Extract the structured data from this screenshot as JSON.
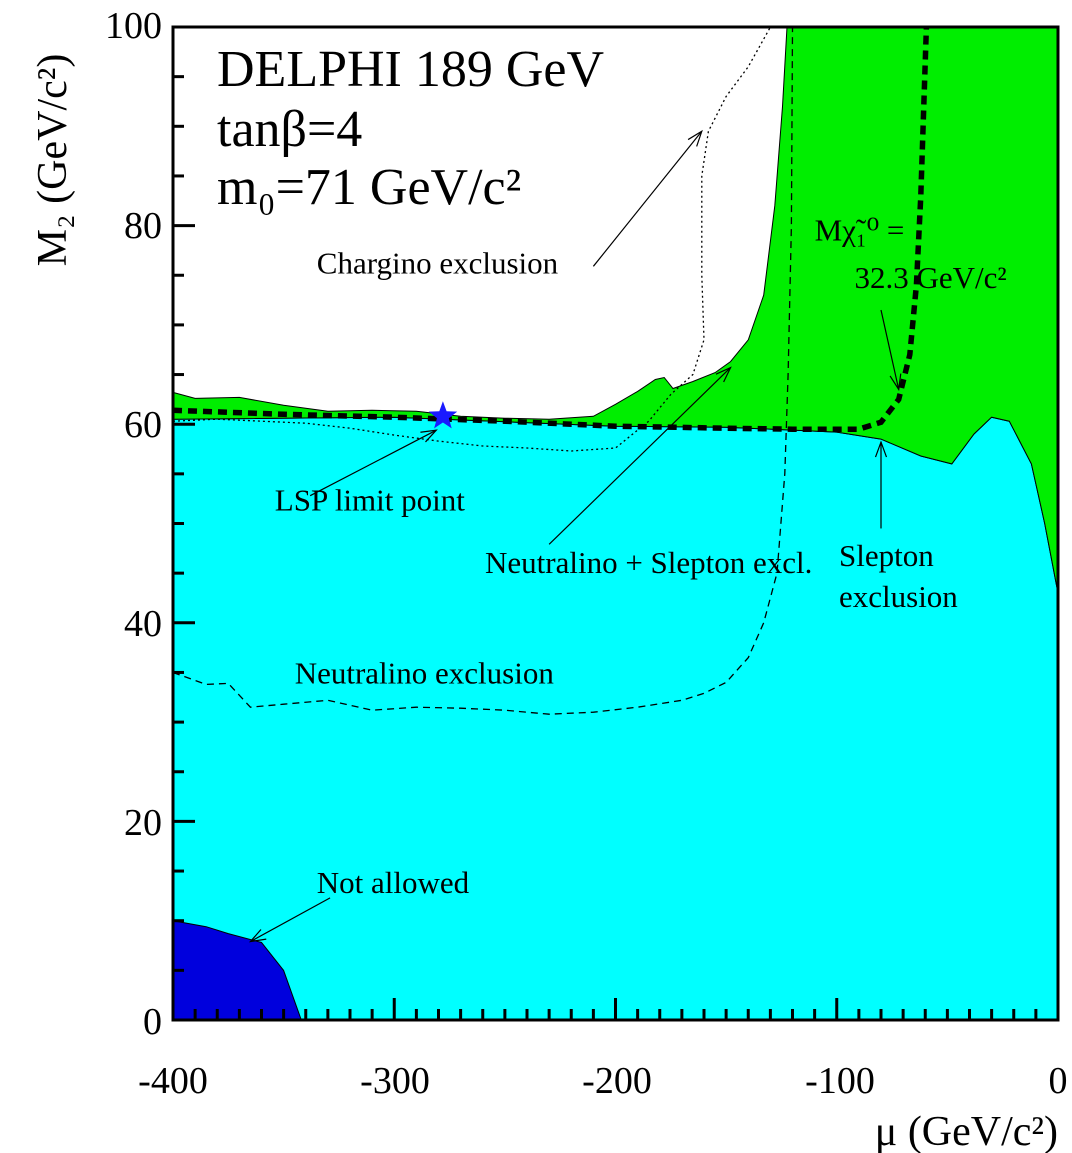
{
  "chart_data": {
    "type": "area",
    "x_axis": {
      "label": "μ (GeV/c²)",
      "range": [
        -400,
        0
      ],
      "ticks": [
        "-400",
        "-300",
        "-200",
        "-100",
        "0"
      ]
    },
    "y_axis": {
      "label": "M₂ (GeV/c²)",
      "range": [
        0,
        100
      ],
      "ticks": [
        "0",
        "20",
        "40",
        "60",
        "80",
        "100"
      ]
    },
    "info": {
      "line1": "DELPHI 189 GeV",
      "line2": "tanβ=4",
      "line3": "m₀=71 GeV/c²"
    },
    "colors": {
      "slepton_region": "#00ffff",
      "neutralino_slepton_region": "#00ee00",
      "not_allowed_region": "#0000dd",
      "lsp_star": "#1a1aff"
    },
    "regions": [
      {
        "name": "Slepton exclusion",
        "color": "#00ffff",
        "points": [
          [
            -400,
            0
          ],
          [
            -400,
            60.5
          ],
          [
            -300,
            60.7
          ],
          [
            -200,
            59.8
          ],
          [
            -150,
            59.7
          ],
          [
            -100,
            59.2
          ],
          [
            -80,
            58.5
          ],
          [
            -62,
            56.8
          ],
          [
            -48,
            56
          ],
          [
            -38,
            59
          ],
          [
            -30,
            60.7
          ],
          [
            -22,
            60.3
          ],
          [
            -12,
            56
          ],
          [
            -6,
            50
          ],
          [
            0,
            43
          ],
          [
            0,
            0
          ]
        ]
      },
      {
        "name": "Neutralino + Slepton excl.",
        "color": "#00ee00",
        "points": [
          [
            -400,
            63.2
          ],
          [
            -390,
            62.6
          ],
          [
            -370,
            62.7
          ],
          [
            -350,
            61.9
          ],
          [
            -330,
            61.3
          ],
          [
            -310,
            61.4
          ],
          [
            -290,
            61.3
          ],
          [
            -270,
            60.8
          ],
          [
            -250,
            60.6
          ],
          [
            -230,
            60.5
          ],
          [
            -210,
            60.8
          ],
          [
            -200,
            62
          ],
          [
            -190,
            63.3
          ],
          [
            -182,
            64.5
          ],
          [
            -178,
            64.7
          ],
          [
            -174,
            63.6
          ],
          [
            -165,
            64.3
          ],
          [
            -155,
            65.2
          ],
          [
            -148,
            66.3
          ],
          [
            -140,
            68.5
          ],
          [
            -133,
            73
          ],
          [
            -128,
            82
          ],
          [
            -124.5,
            92
          ],
          [
            -122.5,
            100
          ],
          [
            0,
            100
          ],
          [
            0,
            43
          ],
          [
            -6,
            50
          ],
          [
            -12,
            56
          ],
          [
            -22,
            60.3
          ],
          [
            -30,
            60.7
          ],
          [
            -38,
            59
          ],
          [
            -48,
            56
          ],
          [
            -62,
            56.8
          ],
          [
            -80,
            58.5
          ],
          [
            -100,
            59.2
          ],
          [
            -150,
            59.7
          ],
          [
            -200,
            59.8
          ],
          [
            -300,
            60.7
          ],
          [
            -400,
            60.5
          ]
        ]
      },
      {
        "name": "Not allowed",
        "color": "#0000dd",
        "points": [
          [
            -400,
            0
          ],
          [
            -400,
            10
          ],
          [
            -385,
            9.4
          ],
          [
            -375,
            8.7
          ],
          [
            -360,
            7.8
          ],
          [
            -350,
            5
          ],
          [
            -342,
            0
          ]
        ]
      }
    ],
    "series": [
      {
        "name": "Neutralino exclusion",
        "style": "dashed",
        "points": [
          [
            -400,
            35
          ],
          [
            -385,
            33.8
          ],
          [
            -375,
            33.9
          ],
          [
            -365,
            31.5
          ],
          [
            -350,
            31.8
          ],
          [
            -330,
            32.2
          ],
          [
            -310,
            31.2
          ],
          [
            -290,
            31.5
          ],
          [
            -270,
            31.4
          ],
          [
            -250,
            31.2
          ],
          [
            -230,
            30.8
          ],
          [
            -210,
            31
          ],
          [
            -190,
            31.5
          ],
          [
            -170,
            32.2
          ],
          [
            -160,
            32.9
          ],
          [
            -150,
            34
          ],
          [
            -140,
            36.5
          ],
          [
            -133,
            40
          ],
          [
            -127,
            45
          ],
          [
            -123.5,
            55
          ],
          [
            -122,
            65
          ],
          [
            -120.5,
            80
          ],
          [
            -120,
            100
          ]
        ]
      },
      {
        "name": "Chargino exclusion",
        "style": "dotted",
        "points": [
          [
            -400,
            60.3
          ],
          [
            -380,
            60.5
          ],
          [
            -360,
            60.3
          ],
          [
            -340,
            60.1
          ],
          [
            -320,
            59.6
          ],
          [
            -300,
            58.9
          ],
          [
            -280,
            58.3
          ],
          [
            -260,
            57.8
          ],
          [
            -240,
            57.6
          ],
          [
            -220,
            57.3
          ],
          [
            -200,
            57.6
          ],
          [
            -185,
            60.3
          ],
          [
            -175,
            63
          ],
          [
            -165,
            65
          ],
          [
            -160,
            68.5
          ],
          [
            -161,
            75
          ],
          [
            -161,
            85
          ],
          [
            -158,
            89.5
          ],
          [
            -150,
            93
          ],
          [
            -140,
            96
          ],
          [
            -130,
            100
          ]
        ]
      },
      {
        "name": "Mχ̃₁⁰ = 32.3 GeV/c²",
        "style": "thick-dashed",
        "points": [
          [
            -400,
            61.4
          ],
          [
            -350,
            61
          ],
          [
            -300,
            60.7
          ],
          [
            -250,
            60.3
          ],
          [
            -200,
            59.8
          ],
          [
            -150,
            59.6
          ],
          [
            -120,
            59.5
          ],
          [
            -100,
            59.5
          ],
          [
            -90,
            59.5
          ],
          [
            -80,
            60.2
          ],
          [
            -72,
            62.5
          ],
          [
            -67,
            67
          ],
          [
            -64,
            74
          ],
          [
            -62,
            83
          ],
          [
            -60.5,
            93
          ],
          [
            -59.5,
            100
          ]
        ]
      }
    ],
    "points": [
      {
        "name": "LSP limit point",
        "x": -278,
        "y": 60.8,
        "marker": "star"
      }
    ],
    "annotations": [
      {
        "text": "Chargino exclusion",
        "x": -335,
        "y": 75.2,
        "arrow_from": [
          -210,
          75.9
        ],
        "arrow_to": [
          -161,
          89.5
        ]
      },
      {
        "text": "LSP limit point",
        "x": -354,
        "y": 51.3,
        "arrow_from": [
          -338,
          52.8
        ],
        "arrow_to": [
          -281,
          59.4
        ]
      },
      {
        "text": "Neutralino + Slepton excl.",
        "x": -259,
        "y": 45,
        "arrow_from": [
          -230,
          47.9
        ],
        "arrow_to": [
          -148,
          65.7
        ]
      },
      {
        "text": "Neutralino exclusion",
        "x": -345,
        "y": 33.9,
        "arrow_from": null,
        "arrow_to": null
      },
      {
        "text": "Slepton",
        "x": -99,
        "y": 45.7,
        "arrow_from": [
          -80,
          49.5
        ],
        "arrow_to": [
          -80,
          58.2
        ]
      },
      {
        "text": "exclusion",
        "x": -99,
        "y": 41.6,
        "arrow_from": null,
        "arrow_to": null
      },
      {
        "text": "Not allowed",
        "x": -335,
        "y": 12.8,
        "arrow_from": [
          -329,
          12.3
        ],
        "arrow_to": [
          -365,
          7.9
        ]
      },
      {
        "text": "Mχ̃₁⁰ =",
        "x": -110,
        "y": 78.5,
        "arrow_from": null,
        "arrow_to": null
      },
      {
        "text": "32.3 GeV/c²",
        "x": -92,
        "y": 73.7,
        "arrow_from": [
          -80,
          71.5
        ],
        "arrow_to": [
          -72,
          63.5
        ]
      }
    ],
    "grid": false,
    "legend": "none"
  }
}
